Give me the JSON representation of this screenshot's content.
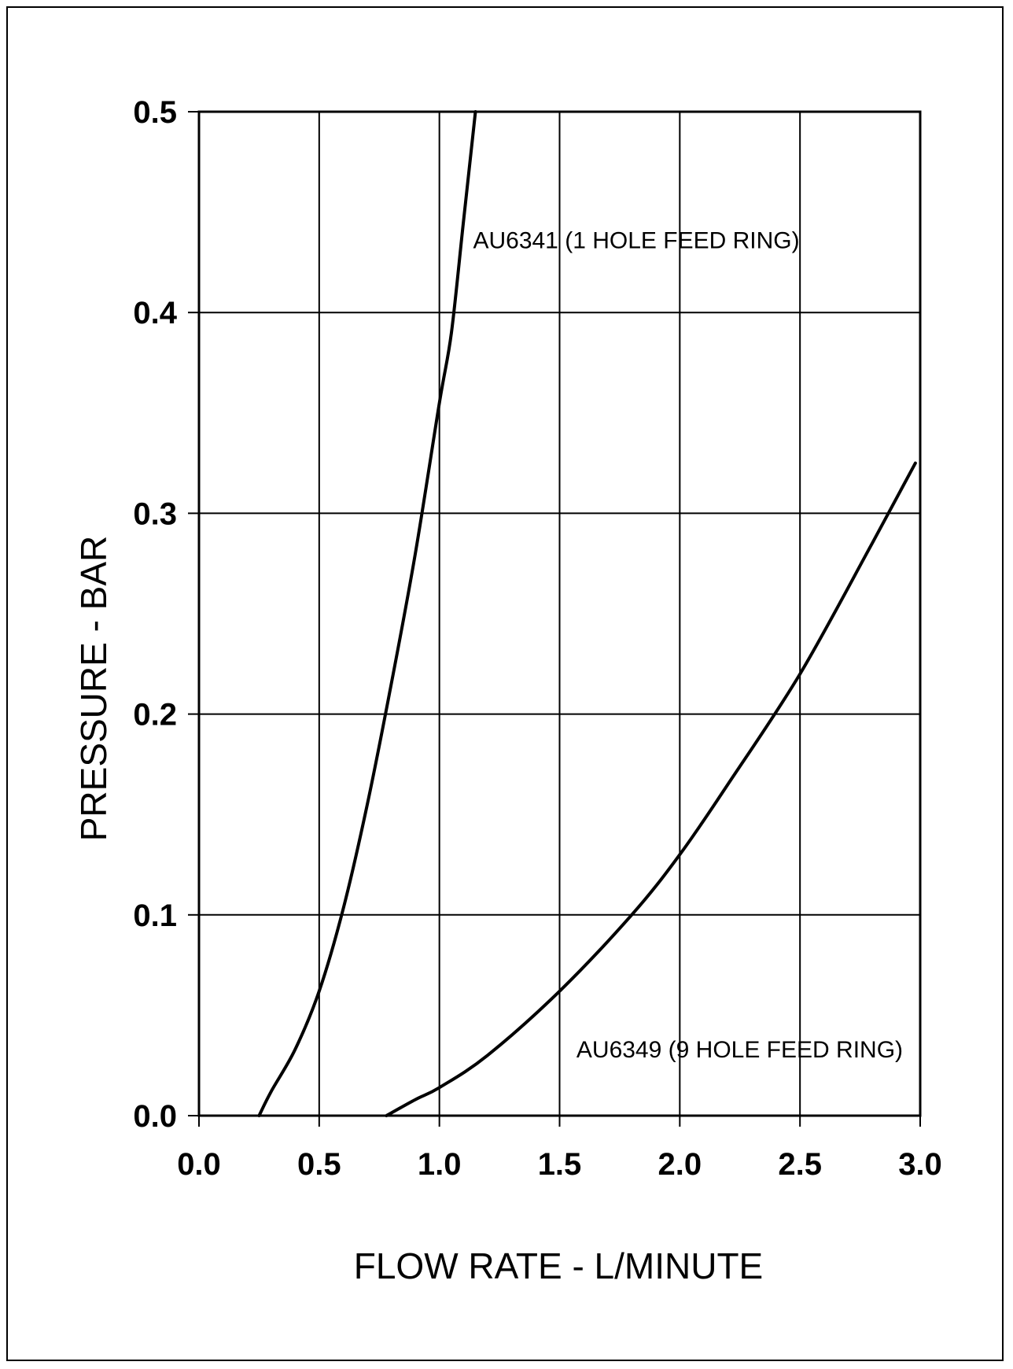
{
  "chart_data": {
    "type": "line",
    "xlabel": "FLOW RATE - L/MINUTE",
    "ylabel": "PRESSURE - BAR",
    "xlim": [
      0.0,
      3.0
    ],
    "ylim": [
      0.0,
      0.5
    ],
    "xticks": [
      "0.0",
      "0.5",
      "1.0",
      "1.5",
      "2.0",
      "2.5",
      "3.0"
    ],
    "yticks": [
      "0.0",
      "0.1",
      "0.2",
      "0.3",
      "0.4",
      "0.5"
    ],
    "grid": true,
    "series": [
      {
        "name": "AU6341 (1 HOLE FEED RING)",
        "x": [
          0.25,
          0.3,
          0.4,
          0.5,
          0.6,
          0.7,
          0.8,
          0.9,
          1.0,
          1.05,
          1.1,
          1.15
        ],
        "y": [
          0.0,
          0.012,
          0.033,
          0.062,
          0.103,
          0.155,
          0.215,
          0.28,
          0.355,
          0.39,
          0.445,
          0.5
        ]
      },
      {
        "name": "AU6349 (9 HOLE FEED RING)",
        "x": [
          0.78,
          0.9,
          1.0,
          1.2,
          1.5,
          1.8,
          2.0,
          2.2,
          2.5,
          2.8,
          2.98
        ],
        "y": [
          0.0,
          0.008,
          0.014,
          0.03,
          0.062,
          0.1,
          0.13,
          0.165,
          0.22,
          0.285,
          0.325
        ]
      }
    ]
  }
}
